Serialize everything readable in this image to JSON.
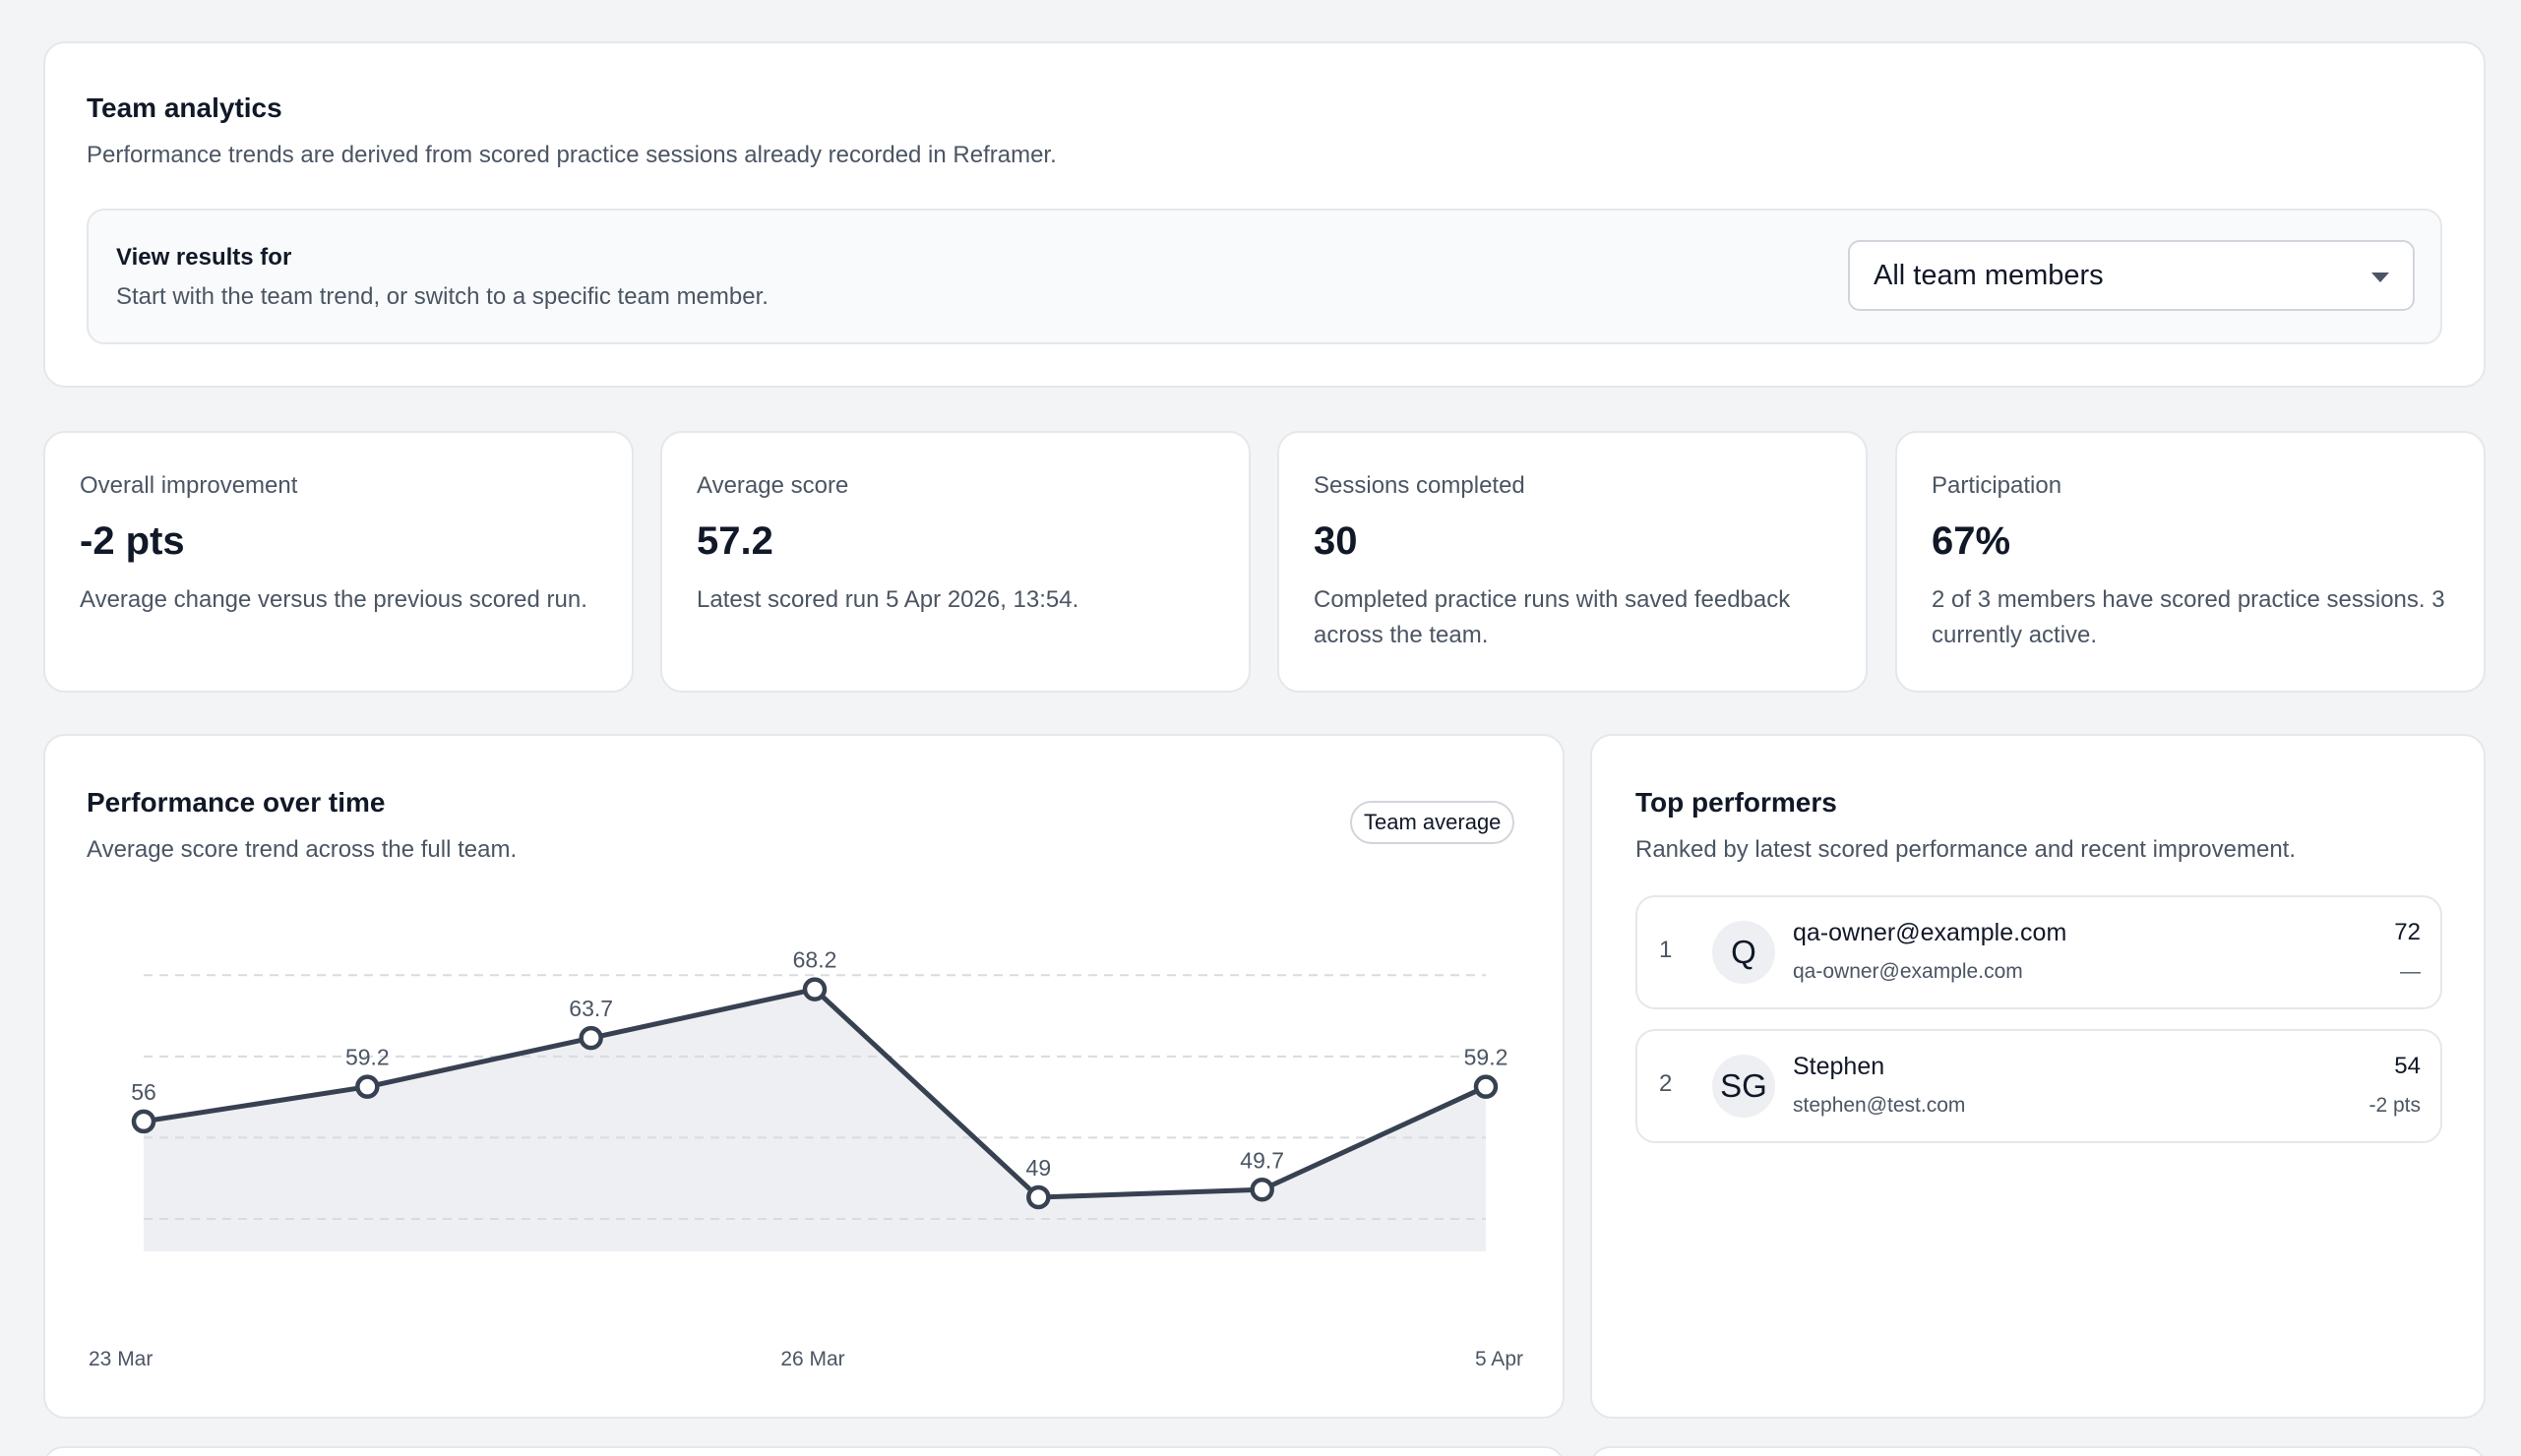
{
  "header": {
    "title": "Team analytics",
    "subtitle": "Performance trends are derived from scored practice sessions already recorded in Reframer.",
    "filter": {
      "title": "View results for",
      "subtitle": "Start with the team trend, or switch to a specific team member.",
      "selected": "All team members"
    }
  },
  "metrics": [
    {
      "label": "Overall improvement",
      "value": "-2 pts",
      "desc": "Average change versus the previous scored run."
    },
    {
      "label": "Average score",
      "value": "57.2",
      "desc": "Latest scored run 5 Apr 2026, 13:54."
    },
    {
      "label": "Sessions completed",
      "value": "30",
      "desc": "Completed practice runs with saved feedback across the team."
    },
    {
      "label": "Participation",
      "value": "67%",
      "desc": "2 of 3 members have scored practice sessions. 3 currently active."
    }
  ],
  "performance": {
    "title": "Performance over time",
    "subtitle": "Average score trend across the full team.",
    "pill": "Team average"
  },
  "chart_data": {
    "type": "area",
    "title": "Performance over time",
    "xlabel": "",
    "ylabel": "",
    "x_tick_labels": [
      "23 Mar",
      "26 Mar",
      "5 Apr"
    ],
    "x_tick_index": [
      0,
      3,
      6
    ],
    "values": [
      56,
      59.2,
      63.7,
      68.2,
      49,
      49.7,
      59.2
    ],
    "data_labels": [
      "56",
      "59.2",
      "63.7",
      "68.2",
      "49",
      "49.7",
      "59.2"
    ],
    "ylim": [
      44,
      69.8
    ],
    "gridlines": [
      47,
      54.5,
      62,
      69.5
    ],
    "grid": true,
    "line_color": "#374151",
    "fill_color": "#eeeff2"
  },
  "top": {
    "title": "Top performers",
    "subtitle": "Ranked by latest scored performance and recent improvement.",
    "performers": [
      {
        "rank": "1",
        "initials": "Q",
        "name": "qa-owner@example.com",
        "email": "qa-owner@example.com",
        "score": "72",
        "delta": "—"
      },
      {
        "rank": "2",
        "initials": "SG",
        "name": "Stephen",
        "email": "stephen@test.com",
        "score": "54",
        "delta": "-2 pts"
      }
    ]
  }
}
